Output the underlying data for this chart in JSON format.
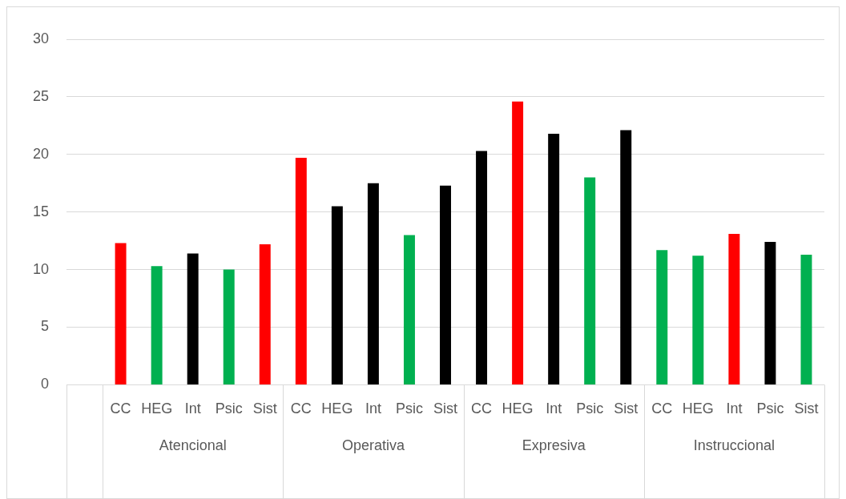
{
  "chart_data": {
    "type": "bar",
    "categories": [
      null,
      "CC",
      "HEG",
      "Int",
      "Psic",
      "Sist",
      "CC",
      "HEG",
      "Int",
      "Psic",
      "Sist",
      "CC",
      "HEG",
      "Int",
      "Psic",
      "Sist",
      "CC",
      "HEG",
      "Int",
      "Psic",
      "Sist"
    ],
    "values": [
      null,
      12.3,
      10.3,
      11.4,
      10.0,
      12.2,
      19.7,
      15.5,
      17.5,
      13.0,
      17.3,
      20.3,
      24.6,
      21.8,
      18.0,
      22.1,
      11.7,
      11.2,
      13.1,
      12.4,
      11.3
    ],
    "colors": [
      "#000000",
      "#ff0000",
      "#00b050",
      "#000000",
      "#00b050",
      "#ff0000",
      "#ff0000",
      "#000000",
      "#000000",
      "#00b050",
      "#000000",
      "#000000",
      "#ff0000",
      "#000000",
      "#00b050",
      "#000000",
      "#00b050",
      "#00b050",
      "#ff0000",
      "#000000",
      "#00b050"
    ],
    "ylim": [
      0,
      30
    ],
    "yticks": [
      0,
      5,
      10,
      15,
      20,
      25,
      30
    ],
    "grid": "y",
    "legend": false,
    "annotations": [
      "Atencional",
      "Operativa",
      "Expresiva",
      "Instruccional"
    ]
  }
}
